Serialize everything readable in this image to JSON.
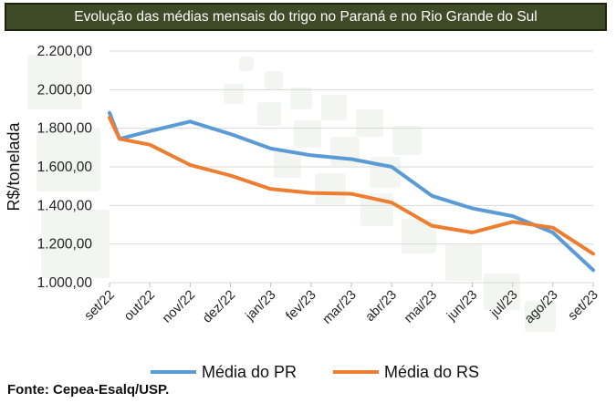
{
  "chart_data": {
    "type": "line",
    "title": "Evolução das médias mensais do trigo no Paraná e no Rio Grande do Sul",
    "ylabel": "R$/tonelada",
    "xlabel": "",
    "categories": [
      "set/22",
      "out/22",
      "nov/22",
      "dez/22",
      "jan/23",
      "fev/23",
      "mar/23",
      "abr/23",
      "mai/23",
      "jun/23",
      "jul/23",
      "ago/23",
      "set/23"
    ],
    "y_ticks": [
      "2.200,00",
      "2.000,00",
      "1.800,00",
      "1.600,00",
      "1.400,00",
      "1.200,00",
      "1.000,00"
    ],
    "ylim": [
      1000,
      2200
    ],
    "grid": true,
    "legend_position": "bottom",
    "series": [
      {
        "name": "Média do PR",
        "color": "#5b9bd5",
        "x": [
          0,
          0.25,
          1,
          2,
          3,
          4,
          5,
          6,
          7,
          8,
          9,
          10,
          11,
          12
        ],
        "values": [
          1880,
          1745,
          1785,
          1835,
          1770,
          1695,
          1660,
          1640,
          1600,
          1450,
          1385,
          1345,
          1260,
          1065
        ]
      },
      {
        "name": "Média do RS",
        "color": "#ed7d31",
        "x": [
          0,
          0.25,
          1,
          2,
          3,
          4,
          5,
          6,
          7,
          8,
          9,
          10,
          11,
          12
        ],
        "values": [
          1855,
          1745,
          1715,
          1610,
          1555,
          1485,
          1465,
          1460,
          1415,
          1295,
          1260,
          1315,
          1285,
          1150
        ]
      }
    ]
  },
  "source": "Fonte: Cepea-Esalq/USP."
}
